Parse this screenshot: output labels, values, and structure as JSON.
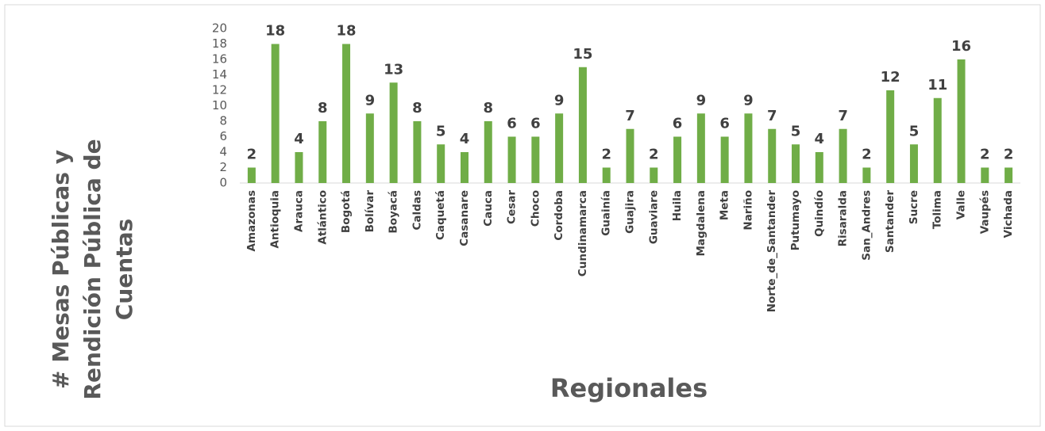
{
  "chart_data": {
    "type": "bar",
    "xlabel": "Regionales",
    "ylabel": [
      "# Mesas Públicas y",
      "Rendición Pública de",
      "Cuentas"
    ],
    "categories": [
      "Amazonas",
      "Antioquia",
      "Arauca",
      "Atlántico",
      "Bogotá",
      "Bolívar",
      "Boyacá",
      "Caldas",
      "Caquetá",
      "Casanare",
      "Cauca",
      "Cesar",
      "Choco",
      "Cordoba",
      "Cundinamarca",
      "Guainía",
      "Guajira",
      "Guaviare",
      "Huila",
      "Magdalena",
      "Meta",
      "Nariño",
      "Norte_de_Santander",
      "Putumayo",
      "Quindío",
      "Risaralda",
      "San_Andres",
      "Santander",
      "Sucre",
      "Tolima",
      "Valle",
      "Vaupés",
      "Vichada"
    ],
    "values": [
      2,
      18,
      4,
      8,
      18,
      9,
      13,
      8,
      5,
      4,
      8,
      6,
      6,
      9,
      15,
      2,
      7,
      2,
      6,
      9,
      6,
      9,
      7,
      5,
      4,
      7,
      2,
      12,
      5,
      11,
      16,
      2,
      2
    ],
    "color": "#70ad47",
    "ylim": [
      0,
      20
    ],
    "yticks": [
      0,
      2,
      4,
      6,
      8,
      10,
      12,
      14,
      16,
      18,
      20
    ],
    "grid": false
  }
}
